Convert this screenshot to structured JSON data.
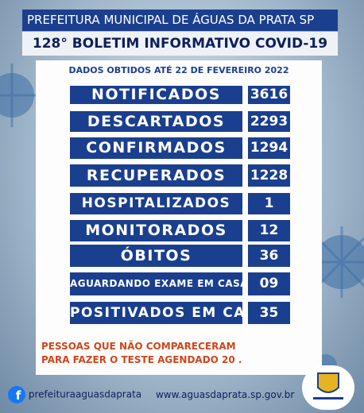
{
  "header": {
    "title": "PREFEITURA MUNICIPAL DE ÁGUAS DA PRATA SP",
    "subtitle": "128° BOLETIM INFORMATIVO COVID-19"
  },
  "date_line": "DADOS OBTIDOS ATÉ 22 DE FEVEREIRO 2022",
  "rows": [
    {
      "label": "NOTIFICADOS",
      "value": "3616"
    },
    {
      "label": "DESCARTADOS",
      "value": "2293"
    },
    {
      "label": "CONFIRMADOS",
      "value": "1294"
    },
    {
      "label": "RECUPERADOS",
      "value": "1228"
    },
    {
      "label": "HOSPITALIZADOS",
      "value": "1"
    },
    {
      "label": "MONITORADOS",
      "value": "12"
    },
    {
      "label": "ÓBITOS",
      "value": "36"
    },
    {
      "label": "AGUARDANDO EXAME EM CASA",
      "value": "09"
    },
    {
      "label": "POSITIVADOS EM CASA",
      "value": "35"
    }
  ],
  "note": [
    "PESSOAS QUE NÃO COMPARECERAM",
    "PARA FAZER O TESTE AGENDADO 20 ."
  ],
  "footer": {
    "facebook": "prefeituraaguasdaprata",
    "website": "www.aguasdaprata.sp.gov.br"
  }
}
